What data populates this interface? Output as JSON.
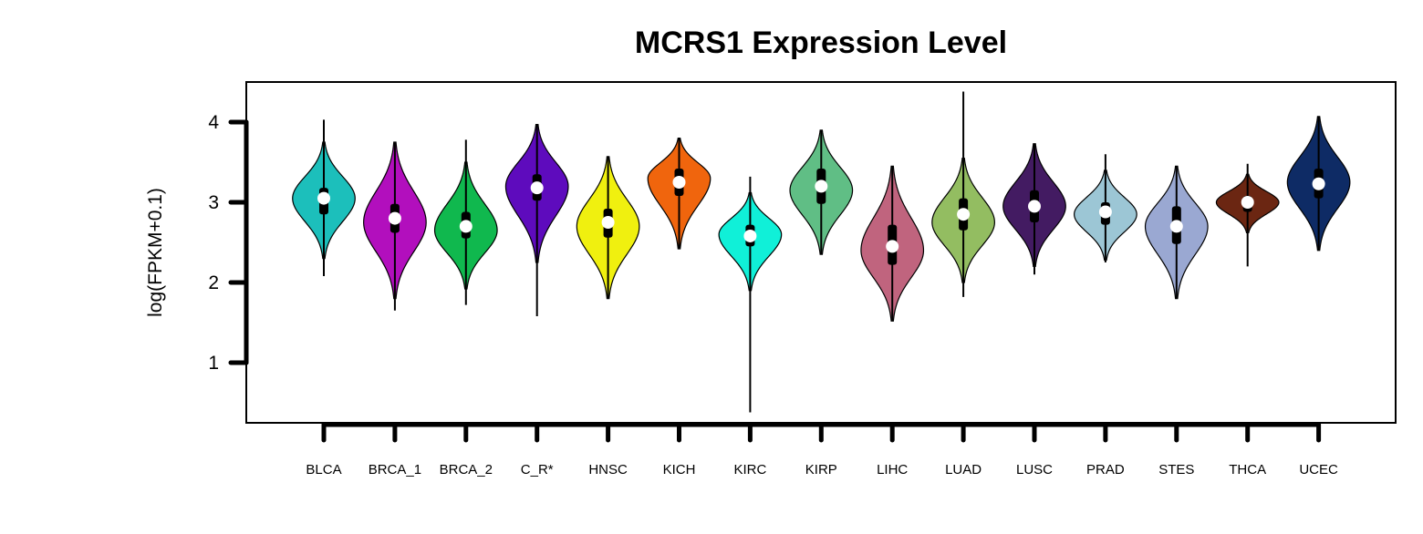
{
  "chart_data": {
    "type": "violin",
    "title": "MCRS1 Expression Level",
    "ylabel": "log(FPKM+0.1)",
    "xlabel": "",
    "ylim": [
      0.25,
      4.5
    ],
    "yticks": [
      1,
      2,
      3,
      4
    ],
    "grid": false,
    "legend": "none",
    "categories": [
      "BLCA",
      "BRCA_1",
      "BRCA_2",
      "C_R*",
      "HNSC",
      "KICH",
      "KIRC",
      "KIRP",
      "LIHC",
      "LUAD",
      "LUSC",
      "PRAD",
      "STES",
      "THCA",
      "UCEC"
    ],
    "series": [
      {
        "min": 2.08,
        "max": 4.03,
        "vmin": 2.3,
        "vmax": 3.75,
        "q1": 2.85,
        "q3": 3.18,
        "median": 3.05,
        "mode": 3.05,
        "width": 0.44,
        "color": "#1cbfbb"
      },
      {
        "min": 1.65,
        "max": 3.75,
        "vmin": 1.8,
        "vmax": 3.75,
        "q1": 2.62,
        "q3": 2.98,
        "median": 2.8,
        "mode": 2.75,
        "width": 0.44,
        "color": "#b20fbd"
      },
      {
        "min": 1.72,
        "max": 3.78,
        "vmin": 1.92,
        "vmax": 3.5,
        "q1": 2.55,
        "q3": 2.88,
        "median": 2.7,
        "mode": 2.65,
        "width": 0.44,
        "color": "#10b84e"
      },
      {
        "min": 1.58,
        "max": 3.97,
        "vmin": 2.25,
        "vmax": 3.97,
        "q1": 3.02,
        "q3": 3.35,
        "median": 3.18,
        "mode": 3.2,
        "width": 0.44,
        "color": "#5e0bbd"
      },
      {
        "min": 1.8,
        "max": 3.57,
        "vmin": 1.8,
        "vmax": 3.57,
        "q1": 2.56,
        "q3": 2.92,
        "median": 2.75,
        "mode": 2.7,
        "width": 0.44,
        "color": "#f0f00f"
      },
      {
        "min": 2.42,
        "max": 3.8,
        "vmin": 2.42,
        "vmax": 3.8,
        "q1": 3.08,
        "q3": 3.42,
        "median": 3.25,
        "mode": 3.3,
        "width": 0.44,
        "color": "#f0650d"
      },
      {
        "min": 0.38,
        "max": 3.32,
        "vmin": 1.9,
        "vmax": 3.12,
        "q1": 2.45,
        "q3": 2.72,
        "median": 2.58,
        "mode": 2.6,
        "width": 0.44,
        "color": "#10f0d8"
      },
      {
        "min": 2.35,
        "max": 3.9,
        "vmin": 2.35,
        "vmax": 3.9,
        "q1": 2.98,
        "q3": 3.42,
        "median": 3.2,
        "mode": 3.15,
        "width": 0.44,
        "color": "#60be85"
      },
      {
        "min": 1.52,
        "max": 3.45,
        "vmin": 1.52,
        "vmax": 3.45,
        "q1": 2.22,
        "q3": 2.72,
        "median": 2.45,
        "mode": 2.4,
        "width": 0.44,
        "color": "#c0647e"
      },
      {
        "min": 1.82,
        "max": 4.38,
        "vmin": 2.0,
        "vmax": 3.55,
        "q1": 2.65,
        "q3": 3.05,
        "median": 2.85,
        "mode": 2.75,
        "width": 0.44,
        "color": "#93bd61"
      },
      {
        "min": 2.1,
        "max": 3.73,
        "vmin": 2.2,
        "vmax": 3.73,
        "q1": 2.75,
        "q3": 3.15,
        "median": 2.95,
        "mode": 2.95,
        "width": 0.44,
        "color": "#431b62"
      },
      {
        "min": 2.25,
        "max": 3.6,
        "vmin": 2.28,
        "vmax": 3.4,
        "q1": 2.72,
        "q3": 3.0,
        "median": 2.88,
        "mode": 2.85,
        "width": 0.44,
        "color": "#9cc6d5"
      },
      {
        "min": 1.8,
        "max": 3.45,
        "vmin": 1.8,
        "vmax": 3.45,
        "q1": 2.48,
        "q3": 2.95,
        "median": 2.7,
        "mode": 2.7,
        "width": 0.44,
        "color": "#9aa8d2"
      },
      {
        "min": 2.2,
        "max": 3.48,
        "vmin": 2.62,
        "vmax": 3.35,
        "q1": 2.88,
        "q3": 3.08,
        "median": 3.0,
        "mode": 3.0,
        "width": 0.44,
        "color": "#6b2612"
      },
      {
        "min": 2.4,
        "max": 4.07,
        "vmin": 2.4,
        "vmax": 4.07,
        "q1": 3.05,
        "q3": 3.42,
        "median": 3.23,
        "mode": 3.25,
        "width": 0.44,
        "color": "#0e2b65"
      }
    ]
  }
}
